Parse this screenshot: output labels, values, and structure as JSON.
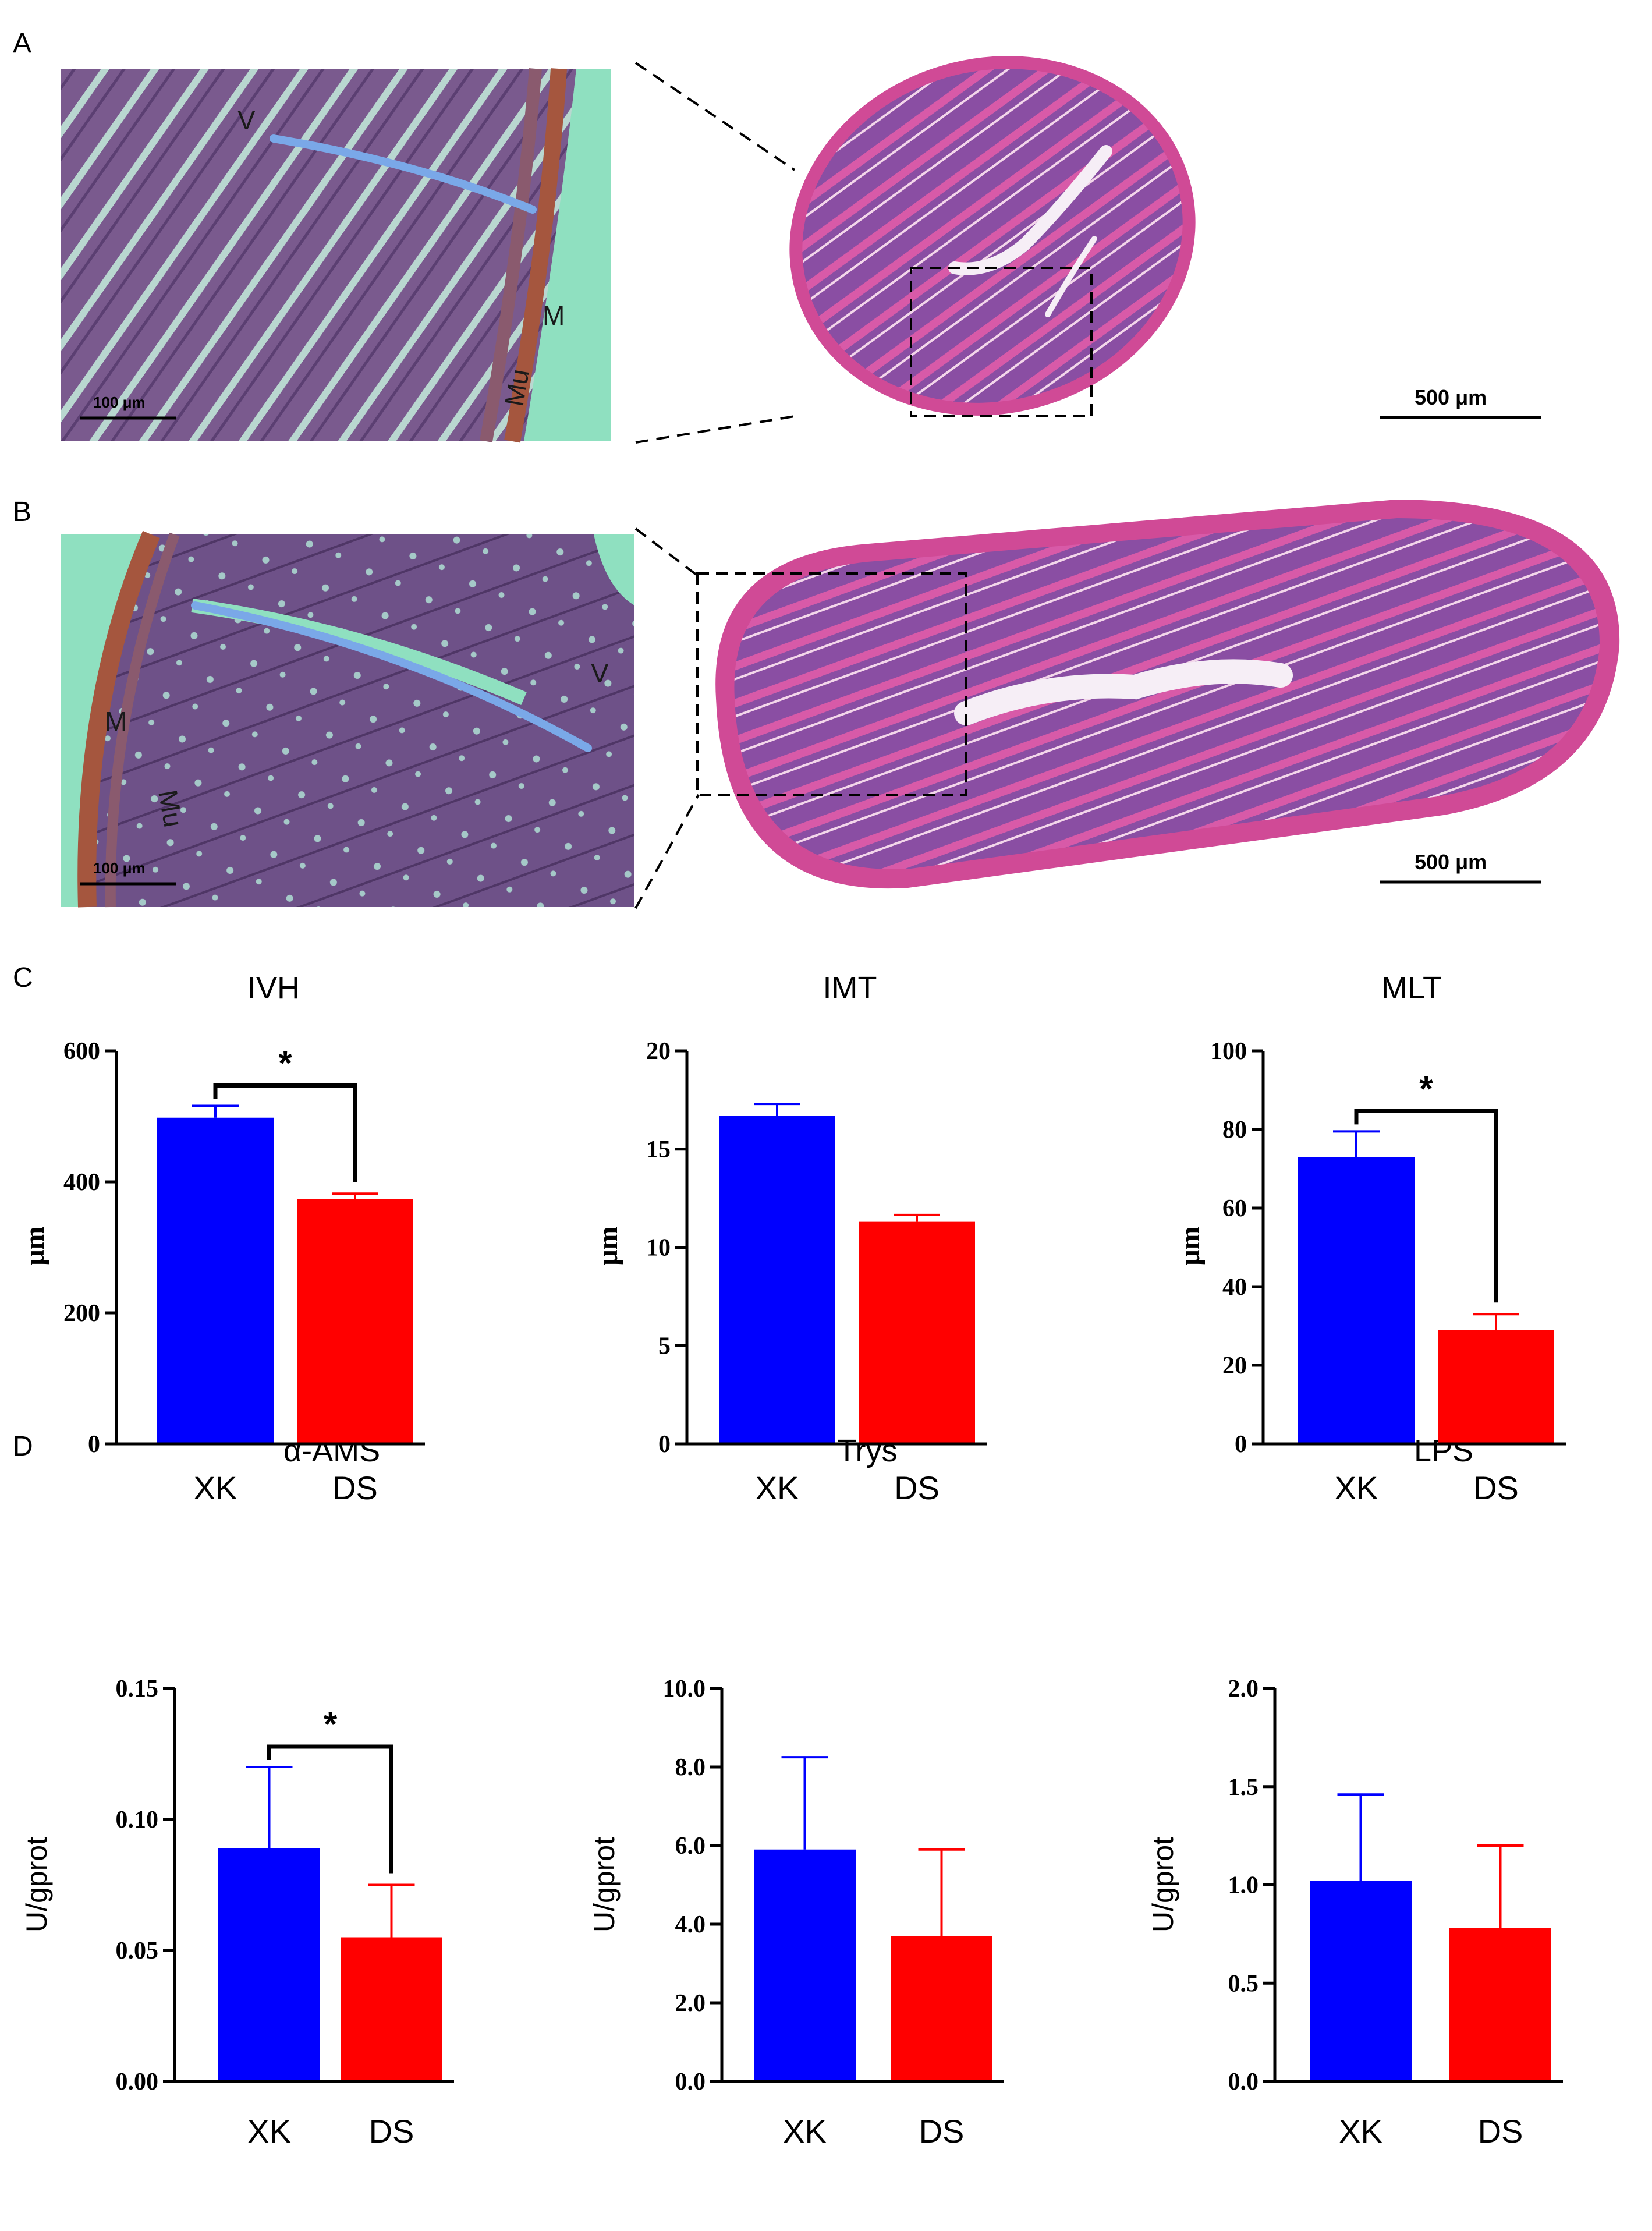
{
  "panels": {
    "A": "A",
    "B": "B",
    "C": "C",
    "D": "D"
  },
  "histology": {
    "A": {
      "labels": {
        "V": "V",
        "M": "M",
        "Mu": "Mu"
      },
      "scale_inset": "100 μm",
      "scale_overview": "500  μm"
    },
    "B": {
      "labels": {
        "V": "V",
        "M": "M",
        "Mu": "Mu"
      },
      "scale_inset": "100 μm",
      "scale_overview": "500  μm"
    },
    "colors": {
      "background": "#8fe0c0",
      "tissue": "#7a5a8e",
      "stain": "#c8408a",
      "villus_line": "#7aa8e8"
    }
  },
  "colors": {
    "XK": "#0000ff",
    "DS": "#ff0000"
  },
  "chart_data": [
    {
      "type": "bar",
      "id": "ivh",
      "title": "IVH",
      "ylabel": "μm",
      "categories": [
        "XK",
        "DS"
      ],
      "values": [
        498,
        374
      ],
      "errors": [
        18,
        8
      ],
      "ylim": [
        0,
        600
      ],
      "ticks": [
        "0",
        "200",
        "400",
        "600"
      ],
      "tick_values": [
        0,
        200,
        400,
        600
      ],
      "significance": "*",
      "ylabel_style": "serif"
    },
    {
      "type": "bar",
      "id": "imt",
      "title": "IMT",
      "ylabel": "μm",
      "categories": [
        "XK",
        "DS"
      ],
      "values": [
        16.7,
        11.3
      ],
      "errors": [
        0.6,
        0.35
      ],
      "ylim": [
        0,
        20
      ],
      "ticks": [
        "0",
        "5",
        "10",
        "15",
        "20"
      ],
      "tick_values": [
        0,
        5,
        10,
        15,
        20
      ],
      "significance": "",
      "ylabel_style": "serif"
    },
    {
      "type": "bar",
      "id": "mlt",
      "title": "MLT",
      "ylabel": "μm",
      "categories": [
        "XK",
        "DS"
      ],
      "values": [
        73,
        29
      ],
      "errors": [
        6.5,
        4
      ],
      "ylim": [
        0,
        100
      ],
      "ticks": [
        "0",
        "20",
        "40",
        "60",
        "80",
        "100"
      ],
      "tick_values": [
        0,
        20,
        40,
        60,
        80,
        100
      ],
      "significance": "*",
      "ylabel_style": "serif"
    },
    {
      "type": "bar",
      "id": "aams",
      "title": "α-AMS",
      "ylabel": "U/gprot",
      "categories": [
        "XK",
        "DS"
      ],
      "values": [
        0.089,
        0.055
      ],
      "errors": [
        0.031,
        0.02
      ],
      "ylim": [
        0,
        0.15
      ],
      "ticks": [
        "0.00",
        "0.05",
        "0.10",
        "0.15"
      ],
      "tick_values": [
        0,
        0.05,
        0.1,
        0.15
      ],
      "significance": "*",
      "ylabel_style": "sans"
    },
    {
      "type": "bar",
      "id": "trys",
      "title": "Trys",
      "ylabel": "U/gprot",
      "categories": [
        "XK",
        "DS"
      ],
      "values": [
        5.9,
        3.7
      ],
      "errors": [
        2.35,
        2.2
      ],
      "ylim": [
        0,
        10
      ],
      "ticks": [
        "0.0",
        "2.0",
        "4.0",
        "6.0",
        "8.0",
        "10.0"
      ],
      "tick_values": [
        0,
        2,
        4,
        6,
        8,
        10
      ],
      "significance": "",
      "ylabel_style": "sans"
    },
    {
      "type": "bar",
      "id": "lps",
      "title": "LPS",
      "ylabel": "U/gprot",
      "categories": [
        "XK",
        "DS"
      ],
      "values": [
        1.02,
        0.78
      ],
      "errors": [
        0.44,
        0.42
      ],
      "ylim": [
        0,
        2.0
      ],
      "ticks": [
        "0.0",
        "0.5",
        "1.0",
        "1.5",
        "2.0"
      ],
      "tick_values": [
        0,
        0.5,
        1.0,
        1.5,
        2.0
      ],
      "significance": "",
      "ylabel_style": "sans"
    }
  ]
}
